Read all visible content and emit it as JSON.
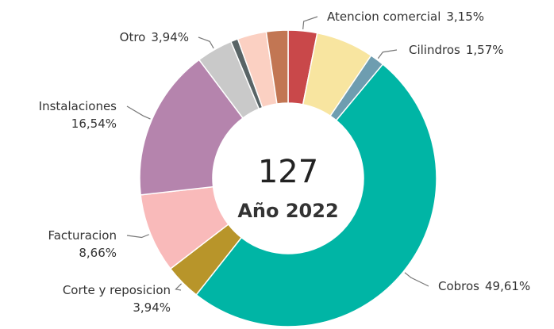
{
  "chart_data": {
    "type": "donut",
    "categories": [
      "Atencion comercial",
      null,
      "Cilindros",
      "Cobros",
      "Corte y reposicion",
      "Facturacion",
      "Instalaciones",
      "Otro",
      null,
      null,
      null
    ],
    "values": [
      3.15,
      6.3,
      1.57,
      49.61,
      3.94,
      8.66,
      16.54,
      3.94,
      0.79,
      3.15,
      2.36
    ],
    "value_labels": [
      "3,15%",
      null,
      "1,57%",
      "49,61%",
      "3,94%",
      "8,66%",
      "16,54%",
      "3,94%",
      null,
      null,
      null
    ],
    "colors": [
      "#c9484a",
      "#f8e5a0",
      "#6e9db0",
      "#00b5a5",
      "#b8952a",
      "#f9baba",
      "#b584ad",
      "#c9c9c9",
      "#596466",
      "#fbd0c2",
      "#c27653"
    ],
    "center_value": 127,
    "center_label": "Año 2022"
  }
}
